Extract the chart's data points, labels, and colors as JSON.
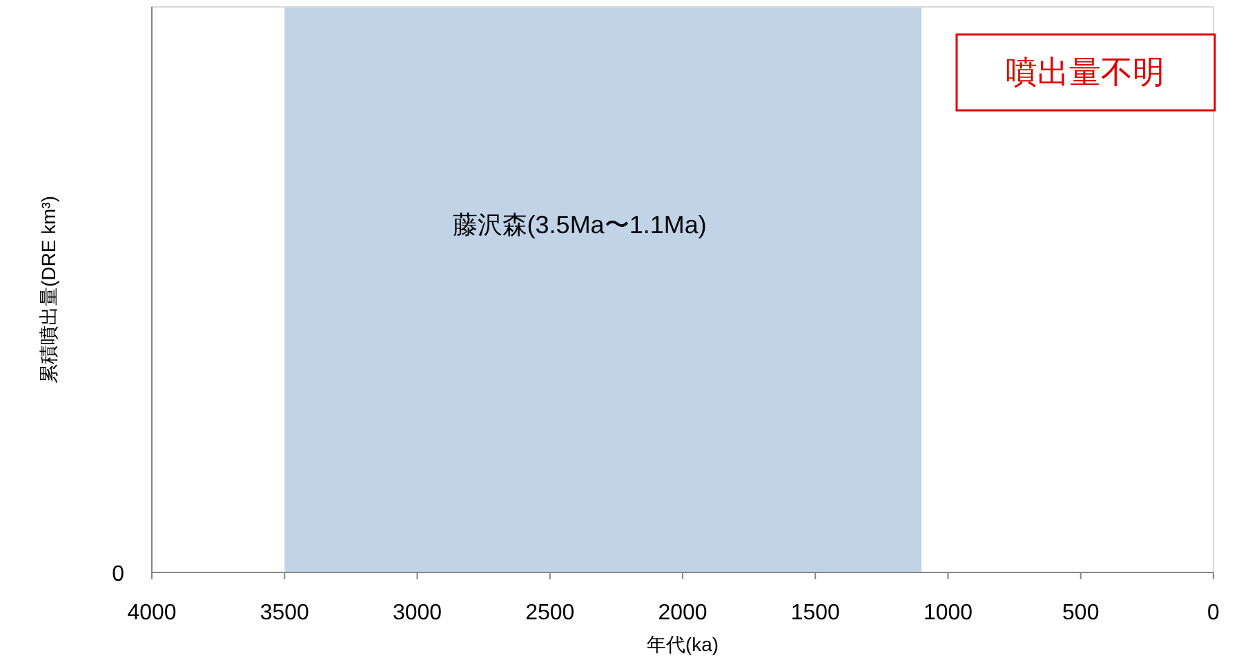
{
  "chart_data": {
    "type": "bar",
    "orientation": "horizontal",
    "xlabel": "年代(ka)",
    "ylabel": "累積噴出量(DRE km³)",
    "xlim": [
      4000,
      0
    ],
    "xticks": [
      4000,
      3500,
      3000,
      2500,
      2000,
      1500,
      1000,
      500,
      0
    ],
    "categories": [
      null
    ],
    "base": [
      1100
    ],
    "values": [
      2400
    ],
    "color": "#c0d3e7",
    "annotations": [
      "噴出量不明",
      "0",
      "藤沢森(3.5Ma〜1.1Ma)"
    ]
  }
}
